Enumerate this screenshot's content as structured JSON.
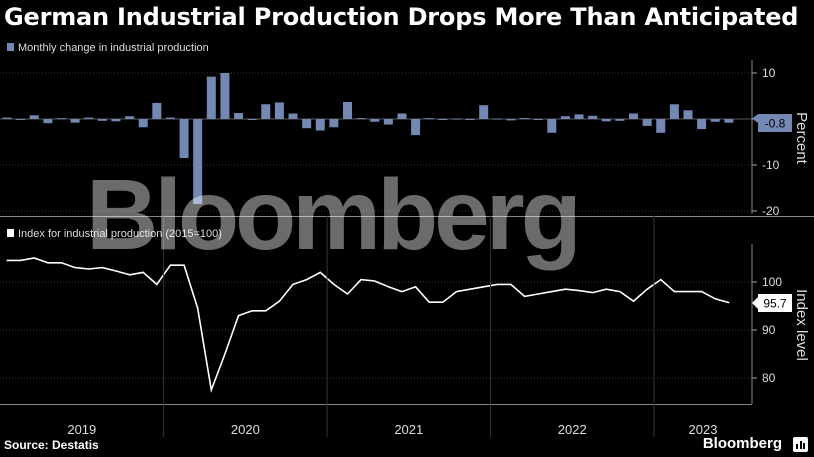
{
  "title": "German Industrial Production Drops More Than Anticipated",
  "source": "Source: Destatis",
  "brand": "Bloomberg",
  "watermark": "Bloomberg",
  "colors": {
    "bar": "#7389b3",
    "line": "#ffffff",
    "background": "#000000",
    "grid": "#444444"
  },
  "chart_data": [
    {
      "type": "bar",
      "legend": "Monthly change in industrial production",
      "ylabel": "Percent",
      "ylim": [
        -22,
        12
      ],
      "yticks": [
        10,
        0,
        -10,
        -20
      ],
      "ytick_labels": [
        "10",
        "",
        "-10",
        "-20"
      ],
      "last_value_label": "-0.8",
      "x": [
        "2019-01",
        "2019-02",
        "2019-03",
        "2019-04",
        "2019-05",
        "2019-06",
        "2019-07",
        "2019-08",
        "2019-09",
        "2019-10",
        "2019-11",
        "2019-12",
        "2020-01",
        "2020-02",
        "2020-03",
        "2020-04",
        "2020-05",
        "2020-06",
        "2020-07",
        "2020-08",
        "2020-09",
        "2020-10",
        "2020-11",
        "2020-12",
        "2021-01",
        "2021-02",
        "2021-03",
        "2021-04",
        "2021-05",
        "2021-06",
        "2021-07",
        "2021-08",
        "2021-09",
        "2021-10",
        "2021-11",
        "2021-12",
        "2022-01",
        "2022-02",
        "2022-03",
        "2022-04",
        "2022-05",
        "2022-06",
        "2022-07",
        "2022-08",
        "2022-09",
        "2022-10",
        "2022-11",
        "2022-12",
        "2023-01",
        "2023-02",
        "2023-03",
        "2023-04",
        "2023-05",
        "2023-06"
      ],
      "values": [
        0.3,
        -0.2,
        0.8,
        -0.9,
        0.2,
        -0.8,
        0.3,
        -0.4,
        -0.5,
        0.6,
        -1.8,
        3.5,
        0.3,
        -8.5,
        -18.5,
        9.2,
        10,
        1.3,
        -0.1,
        3.2,
        3.6,
        1.2,
        -2,
        -2.5,
        -1.8,
        3.7,
        0.2,
        -0.6,
        -1.2,
        1.2,
        -3.5,
        0.2,
        -0.2,
        0.1,
        -0.1,
        3,
        0.1,
        -0.3,
        0.2,
        -0.1,
        -3,
        0.6,
        1,
        0.7,
        -0.5,
        -0.4,
        1.2,
        -1.5,
        -3,
        3.2,
        1.9,
        -2.2,
        -0.6,
        -0.8
      ]
    },
    {
      "type": "line",
      "legend": "Index for industrial production (2015=100)",
      "ylabel": "Index level",
      "ylim": [
        75,
        108
      ],
      "yticks": [
        100,
        90,
        80
      ],
      "ytick_labels": [
        "100",
        "90",
        "80"
      ],
      "last_value_label": "95.7",
      "x_years": [
        "2019",
        "2020",
        "2021",
        "2022",
        "2023"
      ],
      "x": [
        "2019-01",
        "2019-02",
        "2019-03",
        "2019-04",
        "2019-05",
        "2019-06",
        "2019-07",
        "2019-08",
        "2019-09",
        "2019-10",
        "2019-11",
        "2019-12",
        "2020-01",
        "2020-02",
        "2020-03",
        "2020-04",
        "2020-05",
        "2020-06",
        "2020-07",
        "2020-08",
        "2020-09",
        "2020-10",
        "2020-11",
        "2020-12",
        "2021-01",
        "2021-02",
        "2021-03",
        "2021-04",
        "2021-05",
        "2021-06",
        "2021-07",
        "2021-08",
        "2021-09",
        "2021-10",
        "2021-11",
        "2021-12",
        "2022-01",
        "2022-02",
        "2022-03",
        "2022-04",
        "2022-05",
        "2022-06",
        "2022-07",
        "2022-08",
        "2022-09",
        "2022-10",
        "2022-11",
        "2022-12",
        "2023-01",
        "2023-02",
        "2023-03",
        "2023-04",
        "2023-05",
        "2023-06"
      ],
      "values": [
        104.5,
        104.5,
        105,
        104,
        104,
        103,
        102.7,
        103,
        102.3,
        101.5,
        102,
        99.5,
        103.5,
        103.5,
        94.5,
        77.5,
        85,
        93,
        94,
        94,
        96,
        99.5,
        100.5,
        102,
        99.5,
        97.5,
        100.5,
        100.2,
        99,
        98,
        99,
        95.8,
        95.8,
        98,
        98.5,
        99,
        99.5,
        99.5,
        97,
        97.5,
        98,
        98.5,
        98.2,
        97.8,
        98.5,
        98,
        96,
        98.5,
        100.5,
        98,
        98,
        98,
        96.5,
        95.7
      ]
    }
  ]
}
